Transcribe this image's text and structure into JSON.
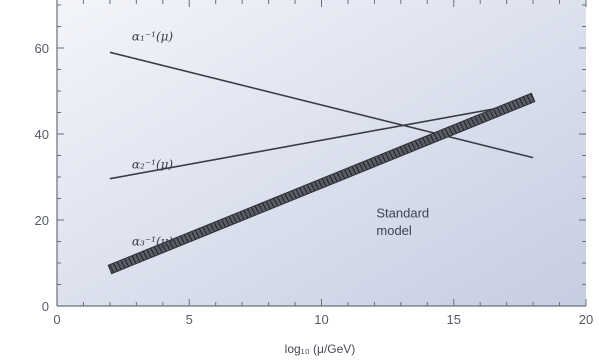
{
  "chart_data": {
    "type": "line",
    "title": "",
    "xlabel": "log₁₀ (μ/GeV)",
    "ylabel": "",
    "xlim": [
      0,
      20
    ],
    "ylim": [
      0,
      60
    ],
    "x_ticks": [
      0,
      5,
      10,
      15,
      20
    ],
    "y_ticks": [
      0,
      20,
      40,
      60
    ],
    "grid": false,
    "legend": "none",
    "series": [
      {
        "name": "α₁⁻¹(μ)",
        "x": [
          2,
          18
        ],
        "values": [
          59,
          34.5
        ],
        "color": "#3a3d45",
        "band": false
      },
      {
        "name": "α₂⁻¹(μ)",
        "x": [
          2,
          18
        ],
        "values": [
          29.6,
          47.5
        ],
        "color": "#3a3d45",
        "band": false
      },
      {
        "name": "α₃⁻¹(μ)",
        "x": [
          2,
          18
        ],
        "values": [
          8.5,
          48.5
        ],
        "color": "#2e3038",
        "band": true
      }
    ],
    "annotations": [
      {
        "text": "Standard",
        "x": 12,
        "y": 21
      },
      {
        "text": "model",
        "x": 12,
        "y": 17
      }
    ],
    "colors": {
      "background_light": "#f2f4f9",
      "background_dark": "#c4cbe0",
      "axis": "#6a6f7c"
    }
  }
}
